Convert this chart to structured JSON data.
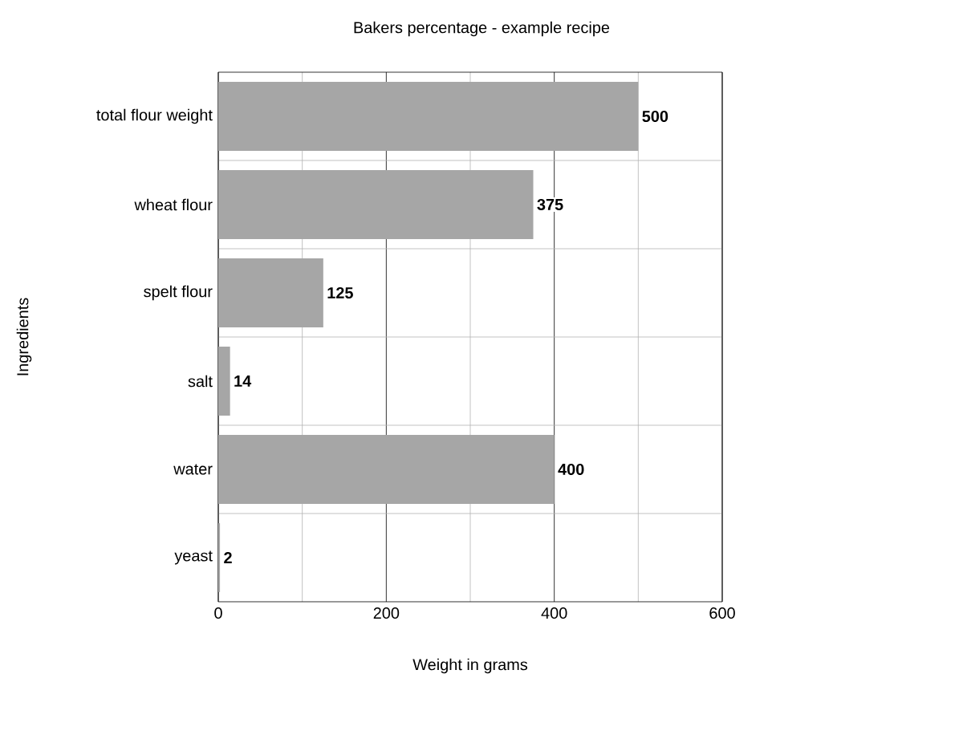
{
  "chart_data": {
    "type": "bar",
    "orientation": "horizontal",
    "title": "Bakers percentage - example recipe",
    "xlabel": "Weight in grams",
    "ylabel": "Ingredients",
    "categories": [
      "total flour weight",
      "wheat flour",
      "spelt flour",
      "salt",
      "water",
      "yeast"
    ],
    "values": [
      500,
      375,
      125,
      14,
      400,
      2
    ],
    "color": "#a6a6a6",
    "xlim": [
      0,
      600
    ],
    "xticks": [
      0,
      200,
      400,
      600
    ],
    "grid": true,
    "data_labels": true
  }
}
